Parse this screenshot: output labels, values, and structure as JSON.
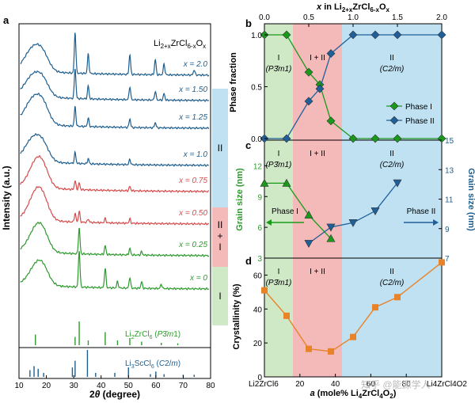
{
  "colors": {
    "green": "#2e9a2e",
    "red": "#d64b4b",
    "blue": "#1f5f8f",
    "band_green": "#cfe8c6",
    "band_red": "#f4b9b9",
    "band_blue": "#bfe1f2",
    "phase1": "#1a9a1a",
    "phase2": "#1f5f9a",
    "orange": "#e8832a"
  },
  "chart_data": [
    {
      "panel": "a",
      "type": "line",
      "legend_formula": "Li2+xZrCl6-xOx",
      "xlabel": "2θ (degree)",
      "ylabel": "Intensity (a.u.)",
      "xlim": [
        10,
        80
      ],
      "xticks": [
        10,
        20,
        30,
        40,
        50,
        60,
        70,
        80
      ],
      "series": [
        {
          "name": "x = 2.0",
          "color_key": "blue",
          "peaks": [
            [
              15.5,
              0.55,
              4.5
            ],
            [
              19,
              0.2,
              3
            ],
            [
              30.5,
              0.95,
              0.4
            ],
            [
              35.3,
              0.45,
              0.4
            ],
            [
              50.5,
              0.45,
              0.4
            ],
            [
              59.8,
              0.35,
              0.4
            ],
            [
              63,
              0.25,
              0.4
            ],
            [
              74,
              0.12,
              0.4
            ]
          ]
        },
        {
          "name": "x = 1.50",
          "color_key": "blue",
          "peaks": [
            [
              15.5,
              0.5,
              4.5
            ],
            [
              19,
              0.2,
              3
            ],
            [
              30.5,
              0.7,
              0.4
            ],
            [
              35.3,
              0.3,
              0.4
            ],
            [
              50.5,
              0.3,
              0.4
            ],
            [
              59.8,
              0.2,
              0.4
            ],
            [
              63,
              0.15,
              0.4
            ]
          ]
        },
        {
          "name": "x = 1.25",
          "color_key": "blue",
          "peaks": [
            [
              15.5,
              0.6,
              4.5
            ],
            [
              19,
              0.25,
              3
            ],
            [
              30.5,
              0.45,
              0.4
            ],
            [
              35.3,
              0.2,
              0.4
            ],
            [
              50.5,
              0.2,
              0.4
            ],
            [
              59.8,
              0.12,
              0.4
            ]
          ]
        },
        {
          "name": "x = 1.0",
          "color_key": "blue",
          "peaks": [
            [
              15.5,
              0.55,
              4.5
            ],
            [
              19,
              0.2,
              3
            ],
            [
              30.5,
              0.25,
              0.4
            ],
            [
              35.3,
              0.12,
              0.4
            ],
            [
              50.5,
              0.12,
              0.4
            ]
          ]
        },
        {
          "name": "x = 0.75",
          "color_key": "red",
          "peaks": [
            [
              16.5,
              0.6,
              4
            ],
            [
              19,
              0.2,
              3
            ],
            [
              30.5,
              0.2,
              0.4
            ],
            [
              32,
              0.15,
              0.4
            ],
            [
              50.5,
              0.1,
              0.4
            ]
          ]
        },
        {
          "name": "x = 0.50",
          "color_key": "red",
          "peaks": [
            [
              16.5,
              0.65,
              4
            ],
            [
              19,
              0.2,
              3
            ],
            [
              30.5,
              0.2,
              0.4
            ],
            [
              32,
              0.25,
              0.4
            ],
            [
              35.3,
              0.08,
              0.4
            ],
            [
              41.5,
              0.1,
              0.4
            ],
            [
              50.5,
              0.1,
              0.4
            ]
          ]
        },
        {
          "name": "x = 0.25",
          "color_key": "green",
          "peaks": [
            [
              16.5,
              0.55,
              4
            ],
            [
              19,
              0.2,
              3
            ],
            [
              32,
              0.6,
              0.4
            ],
            [
              41.5,
              0.2,
              0.4
            ],
            [
              50.5,
              0.15,
              0.4
            ],
            [
              54.8,
              0.08,
              0.4
            ]
          ]
        },
        {
          "name": "x = 0",
          "color_key": "green",
          "peaks": [
            [
              16.5,
              0.45,
              4
            ],
            [
              19,
              0.2,
              3
            ],
            [
              32,
              0.85,
              0.4
            ],
            [
              41.5,
              0.45,
              0.4
            ],
            [
              46,
              0.15,
              0.4
            ],
            [
              50.5,
              0.25,
              0.4
            ],
            [
              54.8,
              0.15,
              0.4
            ],
            [
              62,
              0.1,
              0.4
            ]
          ]
        }
      ],
      "reference_sticks": [
        {
          "label": "Li2ZrCl6 (P-3m1)",
          "color_key": "green",
          "sticks": [
            [
              16,
              0.45
            ],
            [
              30.5,
              0.35
            ],
            [
              32,
              1.0
            ],
            [
              35.3,
              0.2
            ],
            [
              41.5,
              0.55
            ],
            [
              46,
              0.2
            ],
            [
              50.5,
              0.3
            ],
            [
              54.8,
              0.15
            ],
            [
              62,
              0.1
            ],
            [
              68,
              0.08
            ]
          ]
        },
        {
          "label": "Li3ScCl6 (C2/m)",
          "color_key": "blue",
          "sticks": [
            [
              14,
              0.25
            ],
            [
              15.5,
              0.4
            ],
            [
              17,
              0.3
            ],
            [
              19,
              0.15
            ],
            [
              29.5,
              0.35
            ],
            [
              30.5,
              0.6
            ],
            [
              35,
              1.0
            ],
            [
              38,
              0.15
            ],
            [
              45,
              0.15
            ],
            [
              50,
              0.35
            ],
            [
              58,
              0.1
            ],
            [
              60,
              0.2
            ],
            [
              63,
              0.1
            ],
            [
              70,
              0.08
            ],
            [
              74,
              0.08
            ]
          ]
        }
      ],
      "region_labels": [
        "II",
        "II\n+\nI",
        "I"
      ]
    },
    {
      "panel": "b",
      "type": "line",
      "top_xlabel": "x in Li2+xZrCl6-xOx",
      "top_xticks": [
        "0.0",
        "0.5",
        "1.0",
        "1.5",
        "2.0"
      ],
      "ylabel": "Phase fraction",
      "ylim": [
        0,
        1.0
      ],
      "yticks": [
        "0.0",
        "0.5",
        "1.0"
      ],
      "x": [
        0,
        0.25,
        0.5,
        0.625,
        0.75,
        1.0,
        1.25,
        1.5,
        2.0
      ],
      "series": [
        {
          "name": "Phase I",
          "values": [
            1.0,
            1.0,
            0.64,
            0.52,
            0.17,
            0.0,
            0.0,
            0.0,
            0.0
          ]
        },
        {
          "name": "Phase II",
          "values": [
            0.0,
            0.0,
            0.36,
            0.48,
            0.82,
            1.0,
            1.0,
            1.0,
            1.0
          ]
        }
      ],
      "regions": [
        "I (P-3m1)",
        "I + II",
        "II (C2/m)"
      ]
    },
    {
      "panel": "c",
      "type": "line",
      "ylabel_left": "Grain size (nm)",
      "ylabel_right": "Grain size (nm)",
      "yticks_left": [
        "3",
        "6",
        "9",
        "12"
      ],
      "yticks_right": [
        "7",
        "9",
        "11",
        "13",
        "15"
      ],
      "ylim_left": [
        3,
        14.5
      ],
      "ylim_right": [
        7,
        15
      ],
      "series": [
        {
          "name": "Phase I",
          "axis": "left",
          "x": [
            0,
            0.25,
            0.5,
            0.75
          ],
          "values": [
            10.3,
            10.3,
            7.2,
            4.9
          ]
        },
        {
          "name": "Phase II",
          "axis": "right",
          "x": [
            0.5,
            0.75,
            1.0,
            1.25,
            1.5
          ],
          "values": [
            8.0,
            9.1,
            9.4,
            10.2,
            12.1
          ]
        }
      ],
      "regions": [
        "I (P-3m1)",
        "I + II",
        "II (C2/m)"
      ]
    },
    {
      "panel": "d",
      "type": "line",
      "ylabel": "Crystallinity (%)",
      "ylim": [
        0,
        70
      ],
      "yticks": [
        "0",
        "20",
        "40",
        "60"
      ],
      "xlabel": "a (mole% Li4ZrCl4O2)",
      "xticks": [
        "Li2ZrCl6",
        "20",
        "40",
        "60",
        "80",
        "Li4ZrCl4O2"
      ],
      "x": [
        0,
        0.25,
        0.5,
        0.75,
        1.0,
        1.25,
        1.5,
        2.0
      ],
      "values": [
        51,
        36,
        16.5,
        15,
        23.5,
        41,
        47,
        67.5
      ],
      "regions": [
        "I (P-3m1)",
        "I + II",
        "II (C2/m)"
      ]
    }
  ],
  "labels": {
    "panel_a": "a",
    "panel_b": "b",
    "panel_c": "c",
    "panel_d": "d",
    "arrow_phase1": "Phase I",
    "arrow_phase2": "Phase II",
    "watermark": "知乎 @能源学人"
  }
}
